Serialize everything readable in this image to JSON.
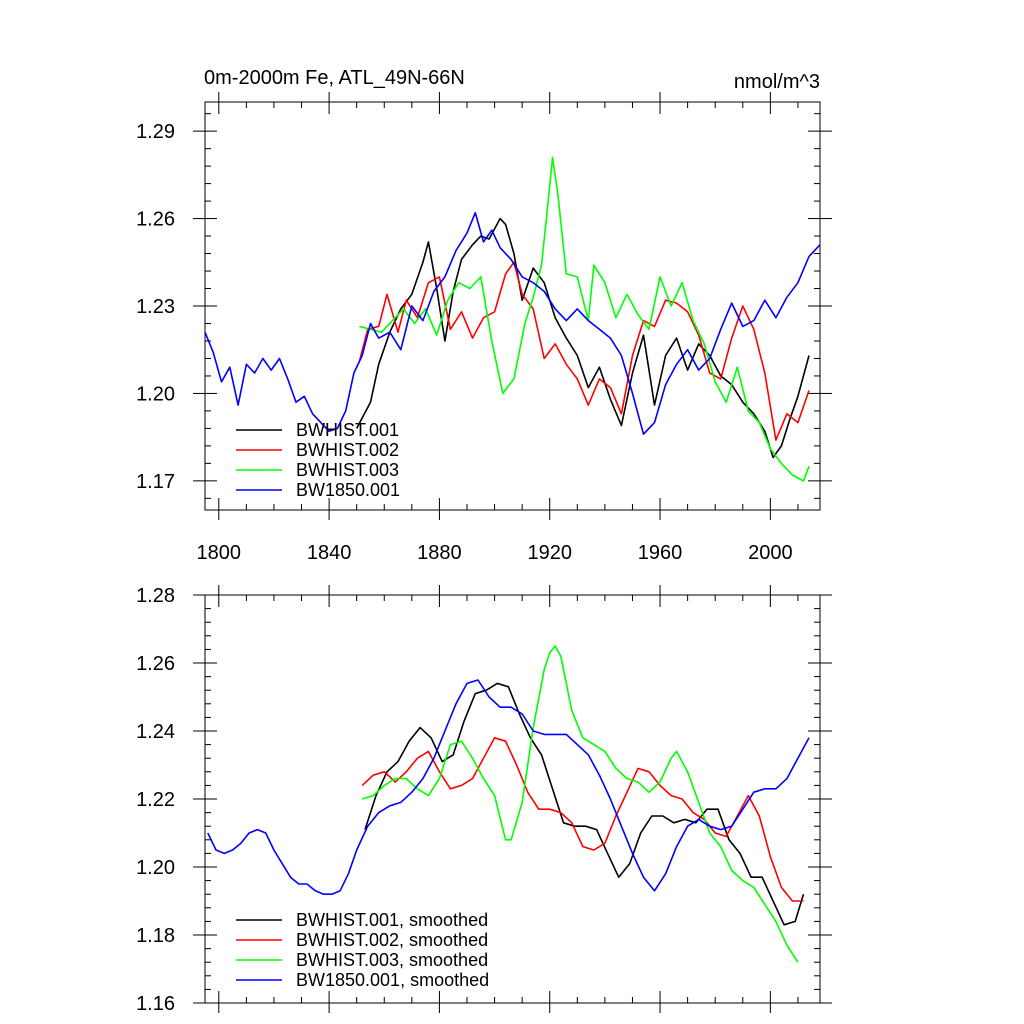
{
  "chart_data": [
    {
      "type": "line",
      "title": "0m-2000m Fe, ATL_49N-66N",
      "units": "nmol/m^3",
      "xlim": [
        1795,
        2018
      ],
      "ylim": [
        1.16,
        1.3
      ],
      "x_ticks": [
        1800,
        1840,
        1880,
        1920,
        1960,
        2000
      ],
      "y_ticks": [
        1.17,
        1.2,
        1.23,
        1.26,
        1.29
      ],
      "legend_position": "bottom-left",
      "series": [
        {
          "name": "BWHIST.001",
          "color": "#000000",
          "x": [
            1850,
            1855,
            1858,
            1862,
            1866,
            1870,
            1874,
            1876,
            1879,
            1882,
            1885,
            1888,
            1892,
            1895,
            1898,
            1902,
            1904,
            1907,
            1910,
            1914,
            1918,
            1922,
            1926,
            1930,
            1934,
            1938,
            1942,
            1946,
            1950,
            1954,
            1958,
            1962,
            1966,
            1970,
            1974,
            1978,
            1982,
            1986,
            1990,
            1994,
            1998,
            2001,
            2004,
            2007,
            2010,
            2014
          ],
          "y": [
            1.188,
            1.197,
            1.21,
            1.221,
            1.229,
            1.234,
            1.245,
            1.252,
            1.236,
            1.218,
            1.235,
            1.246,
            1.251,
            1.254,
            1.253,
            1.26,
            1.258,
            1.248,
            1.232,
            1.243,
            1.238,
            1.226,
            1.219,
            1.213,
            1.202,
            1.209,
            1.198,
            1.189,
            1.207,
            1.22,
            1.196,
            1.213,
            1.219,
            1.208,
            1.217,
            1.213,
            1.206,
            1.203,
            1.197,
            1.193,
            1.187,
            1.178,
            1.182,
            1.191,
            1.199,
            1.213
          ]
        },
        {
          "name": "BWHIST.002",
          "color": "#ff0000",
          "x": [
            1851,
            1854,
            1858,
            1861,
            1865,
            1868,
            1872,
            1876,
            1880,
            1884,
            1888,
            1892,
            1896,
            1900,
            1904,
            1907,
            1910,
            1914,
            1918,
            1922,
            1926,
            1930,
            1934,
            1938,
            1942,
            1946,
            1950,
            1954,
            1958,
            1962,
            1966,
            1970,
            1974,
            1978,
            1982,
            1986,
            1990,
            1994,
            1998,
            2002,
            2006,
            2010,
            2014
          ],
          "y": [
            1.211,
            1.222,
            1.223,
            1.234,
            1.221,
            1.232,
            1.226,
            1.238,
            1.24,
            1.222,
            1.228,
            1.219,
            1.226,
            1.228,
            1.241,
            1.245,
            1.234,
            1.229,
            1.212,
            1.217,
            1.21,
            1.205,
            1.196,
            1.205,
            1.202,
            1.193,
            1.213,
            1.225,
            1.223,
            1.232,
            1.231,
            1.228,
            1.22,
            1.207,
            1.205,
            1.219,
            1.23,
            1.222,
            1.207,
            1.184,
            1.193,
            1.19,
            1.201
          ]
        },
        {
          "name": "BWHIST.003",
          "color": "#00ff00",
          "x": [
            1851,
            1855,
            1859,
            1863,
            1867,
            1871,
            1875,
            1879,
            1883,
            1887,
            1891,
            1895,
            1899,
            1903,
            1907,
            1911,
            1914,
            1917,
            1919,
            1921,
            1923,
            1926,
            1930,
            1934,
            1936,
            1940,
            1944,
            1948,
            1952,
            1956,
            1960,
            1964,
            1968,
            1972,
            1976,
            1980,
            1984,
            1988,
            1992,
            1996,
            2000,
            2004,
            2008,
            2012,
            2014
          ],
          "y": [
            1.223,
            1.222,
            1.221,
            1.225,
            1.229,
            1.224,
            1.229,
            1.22,
            1.232,
            1.238,
            1.236,
            1.24,
            1.218,
            1.2,
            1.205,
            1.224,
            1.233,
            1.244,
            1.262,
            1.281,
            1.268,
            1.241,
            1.24,
            1.225,
            1.244,
            1.238,
            1.226,
            1.234,
            1.227,
            1.222,
            1.24,
            1.23,
            1.238,
            1.225,
            1.217,
            1.204,
            1.197,
            1.209,
            1.194,
            1.19,
            1.181,
            1.176,
            1.172,
            1.17,
            1.175
          ]
        },
        {
          "name": "BW1850.001",
          "color": "#0000ff",
          "x": [
            1795,
            1798,
            1801,
            1804,
            1807,
            1810,
            1813,
            1816,
            1819,
            1822,
            1825,
            1828,
            1831,
            1834,
            1837,
            1840,
            1843,
            1846,
            1849,
            1852,
            1855,
            1858,
            1862,
            1866,
            1870,
            1874,
            1878,
            1882,
            1886,
            1890,
            1893,
            1896,
            1899,
            1902,
            1906,
            1910,
            1914,
            1918,
            1922,
            1926,
            1930,
            1934,
            1938,
            1942,
            1946,
            1950,
            1954,
            1958,
            1962,
            1966,
            1970,
            1974,
            1978,
            1982,
            1986,
            1990,
            1994,
            1998,
            2002,
            2006,
            2010,
            2014,
            2018
          ],
          "y": [
            1.221,
            1.214,
            1.204,
            1.209,
            1.196,
            1.21,
            1.207,
            1.212,
            1.208,
            1.212,
            1.205,
            1.197,
            1.199,
            1.193,
            1.19,
            1.187,
            1.188,
            1.194,
            1.207,
            1.213,
            1.224,
            1.219,
            1.221,
            1.215,
            1.23,
            1.225,
            1.235,
            1.24,
            1.249,
            1.255,
            1.262,
            1.252,
            1.256,
            1.25,
            1.246,
            1.24,
            1.238,
            1.235,
            1.229,
            1.225,
            1.229,
            1.225,
            1.222,
            1.219,
            1.213,
            1.2,
            1.186,
            1.19,
            1.203,
            1.21,
            1.215,
            1.208,
            1.212,
            1.222,
            1.231,
            1.223,
            1.225,
            1.232,
            1.226,
            1.233,
            1.238,
            1.247,
            1.251
          ]
        }
      ]
    },
    {
      "type": "line",
      "xlim": [
        1795,
        2018
      ],
      "ylim": [
        1.16,
        1.28
      ],
      "x_ticks": [
        1800,
        1840,
        1880,
        1920,
        1960,
        2000
      ],
      "y_ticks": [
        1.16,
        1.18,
        1.2,
        1.22,
        1.24,
        1.26,
        1.28
      ],
      "legend_position": "bottom-left",
      "series": [
        {
          "name": "BWHIST.001, smoothed",
          "color": "#000000",
          "x": [
            1853,
            1857,
            1861,
            1865,
            1869,
            1873,
            1877,
            1881,
            1885,
            1889,
            1893,
            1897,
            1901,
            1905,
            1909,
            1913,
            1917,
            1921,
            1925,
            1929,
            1933,
            1937,
            1941,
            1945,
            1949,
            1953,
            1957,
            1961,
            1965,
            1969,
            1973,
            1977,
            1981,
            1985,
            1989,
            1993,
            1997,
            2001,
            2005,
            2009,
            2012
          ],
          "y": [
            1.211,
            1.221,
            1.228,
            1.231,
            1.237,
            1.241,
            1.238,
            1.231,
            1.233,
            1.243,
            1.251,
            1.252,
            1.254,
            1.253,
            1.245,
            1.238,
            1.233,
            1.223,
            1.213,
            1.212,
            1.212,
            1.211,
            1.204,
            1.197,
            1.201,
            1.21,
            1.215,
            1.215,
            1.213,
            1.214,
            1.213,
            1.217,
            1.217,
            1.208,
            1.204,
            1.197,
            1.197,
            1.19,
            1.183,
            1.184,
            1.192
          ]
        },
        {
          "name": "BWHIST.002, smoothed",
          "color": "#ff0000",
          "x": [
            1852,
            1856,
            1860,
            1864,
            1868,
            1872,
            1876,
            1880,
            1884,
            1888,
            1892,
            1896,
            1900,
            1904,
            1908,
            1912,
            1916,
            1920,
            1924,
            1928,
            1932,
            1936,
            1940,
            1944,
            1948,
            1952,
            1956,
            1960,
            1964,
            1968,
            1972,
            1976,
            1980,
            1984,
            1988,
            1992,
            1996,
            2000,
            2004,
            2008,
            2012
          ],
          "y": [
            1.224,
            1.227,
            1.228,
            1.225,
            1.228,
            1.232,
            1.234,
            1.228,
            1.223,
            1.224,
            1.226,
            1.232,
            1.238,
            1.237,
            1.23,
            1.222,
            1.217,
            1.217,
            1.216,
            1.213,
            1.206,
            1.205,
            1.207,
            1.215,
            1.222,
            1.229,
            1.228,
            1.224,
            1.221,
            1.22,
            1.216,
            1.214,
            1.21,
            1.209,
            1.215,
            1.221,
            1.215,
            1.203,
            1.194,
            1.19,
            1.19
          ]
        },
        {
          "name": "BWHIST.003, smoothed",
          "color": "#00ff00",
          "x": [
            1852,
            1856,
            1860,
            1864,
            1868,
            1872,
            1876,
            1880,
            1884,
            1888,
            1892,
            1896,
            1900,
            1904,
            1906,
            1910,
            1914,
            1918,
            1920,
            1922,
            1924,
            1928,
            1932,
            1936,
            1940,
            1944,
            1948,
            1952,
            1956,
            1960,
            1964,
            1966,
            1970,
            1974,
            1978,
            1982,
            1986,
            1990,
            1994,
            1998,
            2002,
            2006,
            2010
          ],
          "y": [
            1.22,
            1.221,
            1.224,
            1.226,
            1.226,
            1.223,
            1.221,
            1.226,
            1.236,
            1.237,
            1.232,
            1.226,
            1.221,
            1.208,
            1.208,
            1.219,
            1.241,
            1.258,
            1.263,
            1.265,
            1.262,
            1.246,
            1.238,
            1.236,
            1.234,
            1.229,
            1.226,
            1.225,
            1.222,
            1.225,
            1.232,
            1.234,
            1.228,
            1.219,
            1.21,
            1.206,
            1.199,
            1.196,
            1.194,
            1.189,
            1.184,
            1.177,
            1.172
          ]
        },
        {
          "name": "BW1850.001, smoothed",
          "color": "#0000ff",
          "x": [
            1796,
            1799,
            1802,
            1805,
            1808,
            1811,
            1814,
            1817,
            1820,
            1823,
            1826,
            1829,
            1832,
            1835,
            1838,
            1841,
            1844,
            1847,
            1850,
            1854,
            1858,
            1862,
            1866,
            1870,
            1874,
            1878,
            1882,
            1886,
            1890,
            1894,
            1898,
            1902,
            1906,
            1910,
            1914,
            1918,
            1922,
            1926,
            1930,
            1934,
            1938,
            1942,
            1946,
            1950,
            1954,
            1958,
            1962,
            1966,
            1970,
            1974,
            1978,
            1982,
            1986,
            1990,
            1994,
            1998,
            2002,
            2006,
            2010,
            2014
          ],
          "y": [
            1.21,
            1.205,
            1.204,
            1.205,
            1.207,
            1.21,
            1.211,
            1.21,
            1.205,
            1.201,
            1.197,
            1.195,
            1.195,
            1.193,
            1.192,
            1.192,
            1.193,
            1.198,
            1.205,
            1.212,
            1.216,
            1.218,
            1.219,
            1.222,
            1.226,
            1.232,
            1.24,
            1.248,
            1.254,
            1.255,
            1.25,
            1.247,
            1.247,
            1.245,
            1.24,
            1.239,
            1.239,
            1.239,
            1.236,
            1.233,
            1.227,
            1.22,
            1.212,
            1.204,
            1.197,
            1.193,
            1.198,
            1.206,
            1.212,
            1.214,
            1.212,
            1.211,
            1.212,
            1.217,
            1.222,
            1.223,
            1.223,
            1.226,
            1.232,
            1.238
          ]
        }
      ]
    }
  ]
}
